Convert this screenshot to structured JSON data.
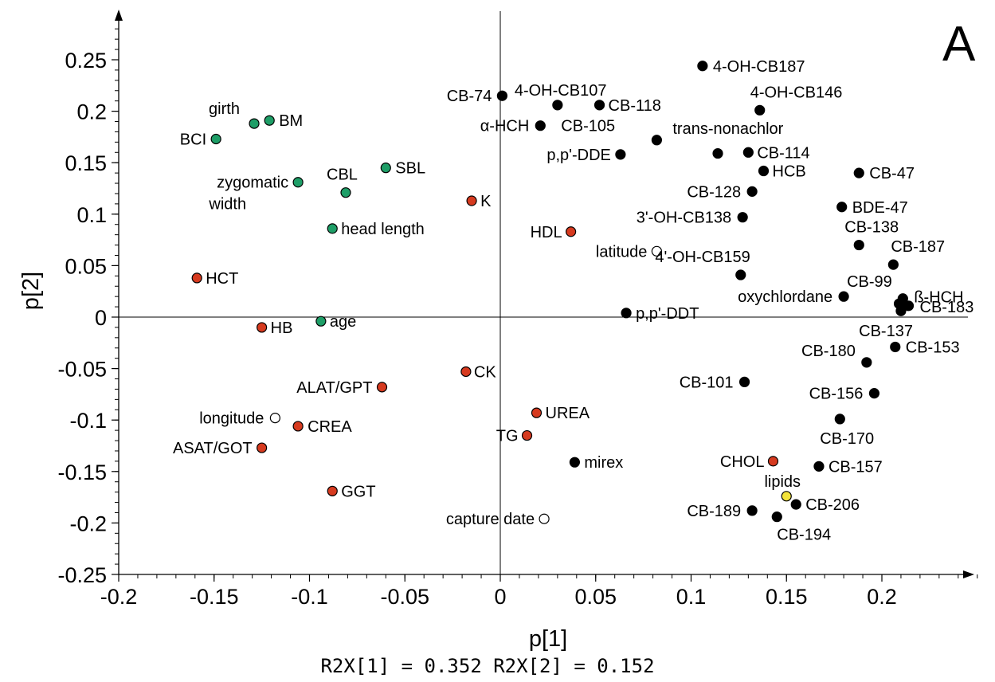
{
  "chart_data": {
    "type": "scatter",
    "panel_label": "A",
    "xlabel": "p[1]",
    "ylabel": "p[2]",
    "footer": "R2X[1] = 0.352 R2X[2] = 0.152",
    "xlim": [
      -0.2,
      0.25
    ],
    "ylim": [
      -0.25,
      0.28
    ],
    "x_ticks": [
      -0.2,
      -0.15,
      -0.1,
      -0.05,
      0,
      0.05,
      0.1,
      0.15,
      0.2
    ],
    "x_tick_labels": [
      "-0.2",
      "-0.15",
      "-0.1",
      "-0.05",
      "0",
      "0.05",
      "0.1",
      "0.15",
      "0.2"
    ],
    "y_ticks": [
      -0.25,
      -0.2,
      -0.15,
      -0.1,
      -0.05,
      0,
      0.05,
      0.1,
      0.15,
      0.2,
      0.25
    ],
    "y_tick_labels": [
      "-0.25",
      "-0.2",
      "-0.15",
      "-0.1",
      "-0.05",
      "0",
      "0.05",
      "0.1",
      "0.15",
      "0.2",
      "0.25"
    ],
    "grid": false,
    "colors": {
      "black": "#000000",
      "red": "#d63a1f",
      "green": "#1e9e67",
      "open": "#ffffff",
      "yellow": "#f3e33a"
    },
    "points": [
      {
        "label": "girth",
        "x": -0.129,
        "y": 0.188,
        "color": "green",
        "anchor": "start",
        "dx": -57,
        "dy": -12
      },
      {
        "label": "BM",
        "x": -0.121,
        "y": 0.191,
        "color": "green",
        "anchor": "start",
        "dx": 12,
        "dy": 7
      },
      {
        "label": "BCI",
        "x": -0.149,
        "y": 0.173,
        "color": "green",
        "anchor": "end",
        "dx": -12,
        "dy": 7
      },
      {
        "label": "zygomatic",
        "x": -0.106,
        "y": 0.131,
        "color": "green",
        "anchor": "end",
        "dx": -12,
        "dy": 7
      },
      {
        "label": "width",
        "x": -0.106,
        "y": 0.131,
        "color": "green",
        "anchor": "end",
        "dx": -65,
        "dy": 34,
        "no_marker": true
      },
      {
        "label": "CBL",
        "x": -0.081,
        "y": 0.121,
        "color": "green",
        "anchor": "start",
        "dx": -24,
        "dy": -16
      },
      {
        "label": "SBL",
        "x": -0.06,
        "y": 0.145,
        "color": "green",
        "anchor": "start",
        "dx": 12,
        "dy": 7
      },
      {
        "label": "head length",
        "x": -0.088,
        "y": 0.086,
        "color": "green",
        "anchor": "start",
        "dx": 11,
        "dy": 7
      },
      {
        "label": "age",
        "x": -0.094,
        "y": -0.004,
        "color": "green",
        "anchor": "start",
        "dx": 11,
        "dy": 7
      },
      {
        "label": "K",
        "x": -0.015,
        "y": 0.113,
        "color": "red",
        "anchor": "start",
        "dx": 11,
        "dy": 7
      },
      {
        "label": "HDL",
        "x": 0.037,
        "y": 0.083,
        "color": "red",
        "anchor": "end",
        "dx": -11,
        "dy": 7
      },
      {
        "label": "HCT",
        "x": -0.159,
        "y": 0.038,
        "color": "red",
        "anchor": "start",
        "dx": 11,
        "dy": 7
      },
      {
        "label": "HB",
        "x": -0.125,
        "y": -0.01,
        "color": "red",
        "anchor": "start",
        "dx": 11,
        "dy": 7
      },
      {
        "label": "CK",
        "x": -0.018,
        "y": -0.053,
        "color": "red",
        "anchor": "start",
        "dx": 10,
        "dy": 7
      },
      {
        "label": "ALAT/GPT",
        "x": -0.062,
        "y": -0.068,
        "color": "red",
        "anchor": "end",
        "dx": -12,
        "dy": 7
      },
      {
        "label": "CREA",
        "x": -0.106,
        "y": -0.106,
        "color": "red",
        "anchor": "start",
        "dx": 12,
        "dy": 7
      },
      {
        "label": "ASAT/GOT",
        "x": -0.125,
        "y": -0.127,
        "color": "red",
        "anchor": "end",
        "dx": -12,
        "dy": 7
      },
      {
        "label": "GGT",
        "x": -0.088,
        "y": -0.169,
        "color": "red",
        "anchor": "start",
        "dx": 11,
        "dy": 7
      },
      {
        "label": "UREA",
        "x": 0.019,
        "y": -0.093,
        "color": "red",
        "anchor": "start",
        "dx": 11,
        "dy": 7
      },
      {
        "label": "TG",
        "x": 0.014,
        "y": -0.115,
        "color": "red",
        "anchor": "end",
        "dx": -11,
        "dy": 7
      },
      {
        "label": "CHOL",
        "x": 0.143,
        "y": -0.14,
        "color": "red",
        "anchor": "end",
        "dx": -11,
        "dy": 7
      },
      {
        "label": "latitude",
        "x": 0.082,
        "y": 0.064,
        "color": "open",
        "anchor": "end",
        "dx": -12,
        "dy": 7
      },
      {
        "label": "longitude",
        "x": -0.118,
        "y": -0.098,
        "color": "open",
        "anchor": "end",
        "dx": -14,
        "dy": 7
      },
      {
        "label": "capture date",
        "x": 0.023,
        "y": -0.196,
        "color": "open",
        "anchor": "end",
        "dx": -12,
        "dy": 7
      },
      {
        "label": "lipids",
        "x": 0.15,
        "y": -0.174,
        "color": "yellow",
        "anchor": "middle",
        "dx": -5,
        "dy": -12
      },
      {
        "label": "CB-74",
        "x": 0.001,
        "y": 0.215,
        "color": "black",
        "anchor": "end",
        "dx": -13,
        "dy": 7
      },
      {
        "label": "4-OH-CB107",
        "x": 0.03,
        "y": 0.206,
        "color": "black",
        "anchor": "start",
        "dx": -54,
        "dy": -12
      },
      {
        "label": "CB-118",
        "x": 0.052,
        "y": 0.206,
        "color": "black",
        "anchor": "start",
        "dx": 11,
        "dy": 7
      },
      {
        "label": "α-HCH",
        "x": 0.021,
        "y": 0.186,
        "color": "black",
        "anchor": "end",
        "dx": -14,
        "dy": 7
      },
      {
        "label": "CB-105",
        "x": 0.021,
        "y": 0.186,
        "color": "black",
        "anchor": "start",
        "dx": 26,
        "dy": 7,
        "no_marker": true
      },
      {
        "label": "4-OH-CB187",
        "x": 0.106,
        "y": 0.244,
        "color": "black",
        "anchor": "start",
        "dx": 13,
        "dy": 7
      },
      {
        "label": "4-OH-CB146",
        "x": 0.136,
        "y": 0.201,
        "color": "black",
        "anchor": "start",
        "dx": -12,
        "dy": -16
      },
      {
        "label": "trans-nonachlor",
        "x": 0.082,
        "y": 0.172,
        "color": "black",
        "anchor": "start",
        "dx": 20,
        "dy": -8
      },
      {
        "label": "p,p'-DDE",
        "x": 0.063,
        "y": 0.158,
        "color": "black",
        "anchor": "end",
        "dx": -12,
        "dy": 7
      },
      {
        "label": "CB-114",
        "x": 0.13,
        "y": 0.16,
        "color": "black",
        "anchor": "start",
        "dx": 11,
        "dy": 7
      },
      {
        "label": "",
        "x": 0.114,
        "y": 0.159,
        "color": "black",
        "anchor": "start",
        "dx": 0,
        "dy": 0
      },
      {
        "label": "HCB",
        "x": 0.138,
        "y": 0.142,
        "color": "black",
        "anchor": "start",
        "dx": 11,
        "dy": 7
      },
      {
        "label": "CB-128",
        "x": 0.132,
        "y": 0.122,
        "color": "black",
        "anchor": "end",
        "dx": -14,
        "dy": 7
      },
      {
        "label": "3'-OH-CB138",
        "x": 0.127,
        "y": 0.097,
        "color": "black",
        "anchor": "end",
        "dx": -14,
        "dy": 7
      },
      {
        "label": "CB-47",
        "x": 0.188,
        "y": 0.14,
        "color": "black",
        "anchor": "start",
        "dx": 13,
        "dy": 7
      },
      {
        "label": "BDE-47",
        "x": 0.179,
        "y": 0.107,
        "color": "black",
        "anchor": "start",
        "dx": 13,
        "dy": 7
      },
      {
        "label": "CB-138",
        "x": 0.188,
        "y": 0.07,
        "color": "black",
        "anchor": "start",
        "dx": -18,
        "dy": -16
      },
      {
        "label": "CB-187",
        "x": 0.206,
        "y": 0.051,
        "color": "black",
        "anchor": "start",
        "dx": -3,
        "dy": -16
      },
      {
        "label": "4'-OH-CB159",
        "x": 0.126,
        "y": 0.041,
        "color": "black",
        "anchor": "end",
        "dx": 12,
        "dy": -16
      },
      {
        "label": "CB-99",
        "x": 0.18,
        "y": 0.02,
        "color": "black",
        "anchor": "start",
        "dx": 4,
        "dy": -12
      },
      {
        "label": "oxychlordane",
        "x": 0.18,
        "y": 0.02,
        "color": "black",
        "anchor": "end",
        "dx": -14,
        "dy": 7,
        "no_marker": true
      },
      {
        "label": "ß-HCH",
        "x": 0.211,
        "y": 0.018,
        "color": "black",
        "anchor": "start",
        "dx": 14,
        "dy": 5
      },
      {
        "label": "CB-183",
        "x": 0.214,
        "y": 0.011,
        "color": "black",
        "anchor": "start",
        "dx": 14,
        "dy": 8
      },
      {
        "label": "",
        "x": 0.209,
        "y": 0.013,
        "color": "black",
        "anchor": "start",
        "dx": 0,
        "dy": 0
      },
      {
        "label": "",
        "x": 0.21,
        "y": 0.006,
        "color": "black",
        "anchor": "start",
        "dx": 0,
        "dy": 0
      },
      {
        "label": "CB-137",
        "x": 0.21,
        "y": 0.006,
        "color": "black",
        "anchor": "end",
        "dx": 15,
        "dy": 32,
        "no_marker": true
      },
      {
        "label": "p,p'-DDT",
        "x": 0.066,
        "y": 0.004,
        "color": "black",
        "anchor": "start",
        "dx": 12,
        "dy": 7
      },
      {
        "label": "CB-153",
        "x": 0.207,
        "y": -0.029,
        "color": "black",
        "anchor": "start",
        "dx": 13,
        "dy": 7
      },
      {
        "label": "CB-180",
        "x": 0.192,
        "y": -0.044,
        "color": "black",
        "anchor": "end",
        "dx": -14,
        "dy": -8
      },
      {
        "label": "CB-101",
        "x": 0.128,
        "y": -0.063,
        "color": "black",
        "anchor": "end",
        "dx": -14,
        "dy": 7
      },
      {
        "label": "CB-156",
        "x": 0.196,
        "y": -0.074,
        "color": "black",
        "anchor": "end",
        "dx": -14,
        "dy": 7
      },
      {
        "label": "CB-170",
        "x": 0.178,
        "y": -0.099,
        "color": "black",
        "anchor": "start",
        "dx": -25,
        "dy": 31
      },
      {
        "label": "mirex",
        "x": 0.039,
        "y": -0.141,
        "color": "black",
        "anchor": "start",
        "dx": 12,
        "dy": 7
      },
      {
        "label": "CB-157",
        "x": 0.167,
        "y": -0.145,
        "color": "black",
        "anchor": "start",
        "dx": 12,
        "dy": 7
      },
      {
        "label": "CB-189",
        "x": 0.132,
        "y": -0.188,
        "color": "black",
        "anchor": "end",
        "dx": -14,
        "dy": 7
      },
      {
        "label": "CB-206",
        "x": 0.155,
        "y": -0.182,
        "color": "black",
        "anchor": "start",
        "dx": 12,
        "dy": 7
      },
      {
        "label": "CB-194",
        "x": 0.145,
        "y": -0.194,
        "color": "black",
        "anchor": "start",
        "dx": 0,
        "dy": 29
      }
    ]
  }
}
